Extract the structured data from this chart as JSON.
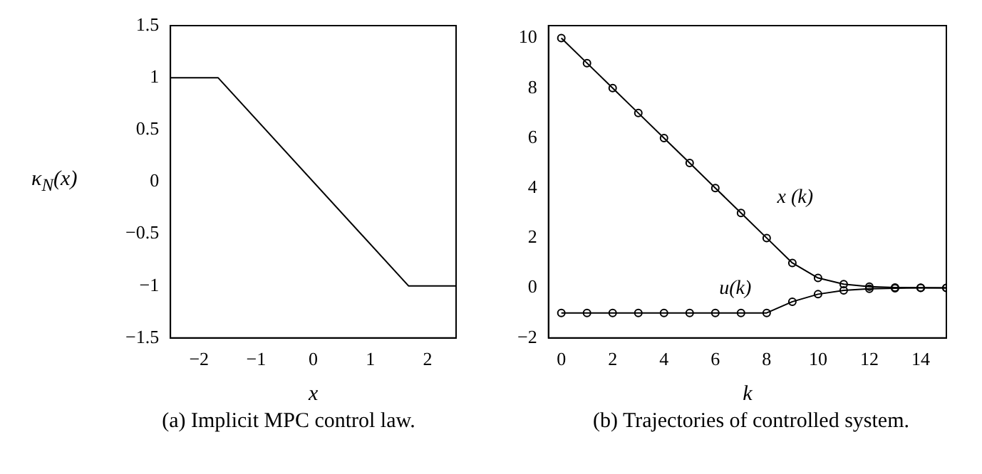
{
  "chart_data": [
    {
      "type": "line",
      "xlabel": "x",
      "ylabel": "κ$_{N}$(x)",
      "annotations": [
        "(a) Implicit MPC control law."
      ],
      "series": [
        {
          "color": "#000000",
          "x": [
            -2.5,
            -1.667,
            1.667,
            2.5
          ],
          "values": [
            1,
            1,
            -1,
            -1
          ]
        }
      ],
      "xlim": [
        -2.5,
        2.5
      ],
      "xticks": [
        {
          "value": -2,
          "label": "−2"
        },
        {
          "value": -1,
          "label": "−1"
        },
        0,
        1,
        2
      ],
      "ylim": [
        -1.5,
        1.5
      ],
      "yticks": [
        {
          "value": -1.5,
          "label": "−1.5"
        },
        {
          "value": -1,
          "label": "−1"
        },
        {
          "value": -0.5,
          "label": "−0.5"
        },
        0,
        0.5,
        1,
        1.5
      ],
      "grid": false,
      "legend": false,
      "marker": "none"
    },
    {
      "type": "line",
      "xlabel": "k",
      "annotations": [
        "(b) Trajectories of controlled system."
      ],
      "x": [
        0,
        1,
        2,
        3,
        4,
        5,
        6,
        7,
        8,
        9,
        10,
        11,
        12,
        13,
        14,
        15
      ],
      "series": [
        {
          "name": "x (k)",
          "color": "#000000",
          "values": [
            10,
            9,
            8,
            7,
            6,
            5,
            4,
            3,
            2,
            1,
            0.4,
            0.15,
            0.05,
            0.02,
            0.01,
            0
          ]
        },
        {
          "name": "u(k)",
          "color": "#000000",
          "values": [
            -1,
            -1,
            -1,
            -1,
            -1,
            -1,
            -1,
            -1,
            -1,
            -0.55,
            -0.25,
            -0.1,
            -0.03,
            -0.01,
            0,
            0
          ]
        }
      ],
      "xlim": [
        -0.5,
        15
      ],
      "xticks": [
        0,
        2,
        4,
        6,
        8,
        10,
        12,
        14
      ],
      "ylim": [
        -2,
        10.5
      ],
      "yticks": [
        {
          "value": -2,
          "label": "−2"
        },
        0,
        2,
        4,
        6,
        8,
        10
      ],
      "grid": false,
      "legend": false,
      "marker": "circle"
    }
  ]
}
